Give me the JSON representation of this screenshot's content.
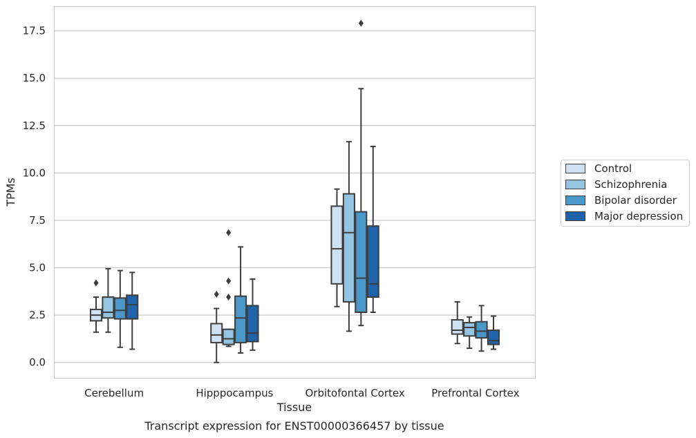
{
  "chart_data": {
    "type": "box",
    "caption": "Transcript expression for ENST00000366457 by tissue",
    "xlabel": "Tissue",
    "ylabel": "TPMs",
    "ylim": [
      -0.85,
      18.8
    ],
    "yticks": [
      0.0,
      2.5,
      5.0,
      7.5,
      10.0,
      12.5,
      15.0,
      17.5
    ],
    "ytick_labels": [
      "0.0",
      "2.5",
      "5.0",
      "7.5",
      "10.0",
      "12.5",
      "15.0",
      "17.5"
    ],
    "grid": "horizontal",
    "legend_position": "right",
    "categories": [
      "Cerebellum",
      "Hipppocampus",
      "Orbitofontal Cortex",
      "Prefrontal Cortex"
    ],
    "series": [
      {
        "name": "Control",
        "color": "#d0e1f2",
        "boxes": [
          {
            "whisker_low": 1.6,
            "q1": 2.2,
            "median": 2.5,
            "q3": 2.8,
            "whisker_high": 3.45,
            "outliers": [
              4.2
            ]
          },
          {
            "whisker_low": 0.0,
            "q1": 1.05,
            "median": 1.45,
            "q3": 2.05,
            "whisker_high": 2.85,
            "outliers": [
              3.6
            ]
          },
          {
            "whisker_low": 2.95,
            "q1": 4.15,
            "median": 6.0,
            "q3": 8.25,
            "whisker_high": 9.15,
            "outliers": []
          },
          {
            "whisker_low": 1.0,
            "q1": 1.5,
            "median": 1.7,
            "q3": 2.25,
            "whisker_high": 3.2,
            "outliers": []
          }
        ]
      },
      {
        "name": "Schizophrenia",
        "color": "#94c4df",
        "boxes": [
          {
            "whisker_low": 1.6,
            "q1": 2.35,
            "median": 2.65,
            "q3": 3.45,
            "whisker_high": 4.95,
            "outliers": []
          },
          {
            "whisker_low": 0.85,
            "q1": 0.95,
            "median": 1.25,
            "q3": 1.75,
            "whisker_high": 1.75,
            "outliers": [
              6.85,
              4.3,
              3.45
            ]
          },
          {
            "whisker_low": 1.65,
            "q1": 3.2,
            "median": 6.85,
            "q3": 8.9,
            "whisker_high": 11.65,
            "outliers": []
          },
          {
            "whisker_low": 0.75,
            "q1": 1.4,
            "median": 1.85,
            "q3": 2.1,
            "whisker_high": 2.4,
            "outliers": []
          }
        ]
      },
      {
        "name": "Bipolar disorder",
        "color": "#4a98c9",
        "boxes": [
          {
            "whisker_low": 0.8,
            "q1": 2.3,
            "median": 2.75,
            "q3": 3.4,
            "whisker_high": 4.85,
            "outliers": []
          },
          {
            "whisker_low": 0.5,
            "q1": 1.05,
            "median": 2.35,
            "q3": 3.5,
            "whisker_high": 6.1,
            "outliers": []
          },
          {
            "whisker_low": 1.95,
            "q1": 2.65,
            "median": 4.45,
            "q3": 7.95,
            "whisker_high": 14.45,
            "outliers": [
              17.9
            ]
          },
          {
            "whisker_low": 0.6,
            "q1": 1.3,
            "median": 1.65,
            "q3": 2.15,
            "whisker_high": 3.0,
            "outliers": []
          }
        ]
      },
      {
        "name": "Major depression",
        "color": "#2163aa",
        "boxes": [
          {
            "whisker_low": 0.7,
            "q1": 2.3,
            "median": 3.05,
            "q3": 3.55,
            "whisker_high": 4.75,
            "outliers": []
          },
          {
            "whisker_low": 0.65,
            "q1": 1.1,
            "median": 1.55,
            "q3": 3.0,
            "whisker_high": 4.4,
            "outliers": []
          },
          {
            "whisker_low": 2.65,
            "q1": 3.45,
            "median": 4.15,
            "q3": 7.2,
            "whisker_high": 11.4,
            "outliers": []
          },
          {
            "whisker_low": 0.7,
            "q1": 0.95,
            "median": 1.15,
            "q3": 1.7,
            "whisker_high": 2.45,
            "outliers": []
          }
        ]
      }
    ]
  }
}
